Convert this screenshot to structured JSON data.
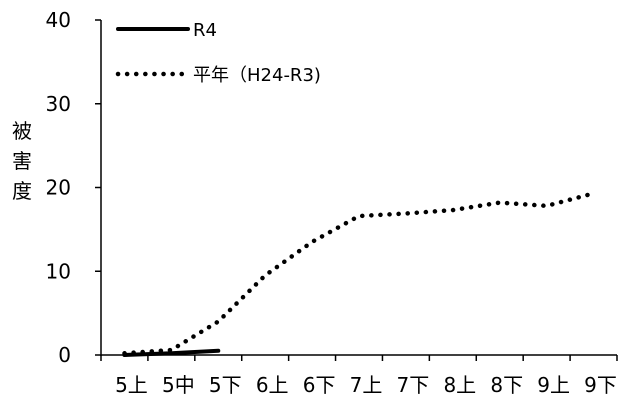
{
  "chart_data": {
    "type": "line",
    "categories": [
      "5上",
      "5中",
      "5下",
      "6上",
      "6下",
      "7上",
      "7下",
      "8上",
      "8下",
      "9上",
      "9下"
    ],
    "ylabel": "被害度",
    "ylim": [
      0,
      40
    ],
    "yticks": [
      0,
      10,
      20,
      30,
      40
    ],
    "grid": false,
    "legend_position": "top-left",
    "series": [
      {
        "name": "R4",
        "style": "solid",
        "color": "#000000",
        "values": [
          0.0,
          0.2,
          0.5,
          null,
          null,
          null,
          null,
          null,
          null,
          null,
          null
        ]
      },
      {
        "name": "平年（H24-R3)",
        "style": "dotted",
        "color": "#000000",
        "values": [
          0.2,
          0.6,
          4.0,
          9.5,
          13.5,
          16.6,
          16.9,
          17.3,
          18.2,
          17.8,
          19.3
        ]
      }
    ]
  }
}
